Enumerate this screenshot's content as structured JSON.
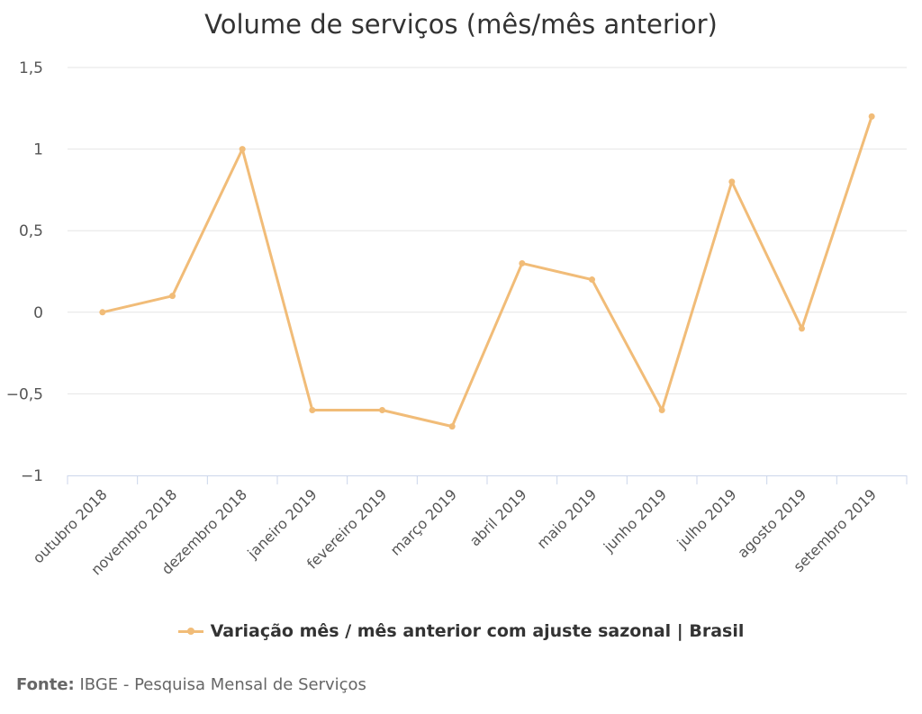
{
  "chart_data": {
    "type": "line",
    "title": "Volume de serviços (mês/mês anterior)",
    "categories": [
      "outubro 2018",
      "novembro 2018",
      "dezembro 2018",
      "janeiro 2019",
      "fevereiro 2019",
      "março 2019",
      "abril 2019",
      "maio 2019",
      "junho 2019",
      "julho 2019",
      "agosto 2019",
      "setembro 2019"
    ],
    "series": [
      {
        "name": "Variação mês / mês anterior com ajuste sazonal | Brasil",
        "values": [
          0,
          0.1,
          1.0,
          -0.6,
          -0.6,
          -0.7,
          0.3,
          0.2,
          -0.6,
          0.8,
          -0.1,
          1.2
        ],
        "color": "#f1bc78"
      }
    ],
    "ylim": [
      -1,
      1.5
    ],
    "y_ticks": [
      -1,
      -0.5,
      0,
      0.5,
      1,
      1.5
    ],
    "y_tick_labels": [
      "−1",
      "−0,5",
      "0",
      "0,5",
      "1",
      "1,5"
    ],
    "grid": true,
    "legend_position": "bottom"
  },
  "source": {
    "label": "Fonte:",
    "text": " IBGE - Pesquisa Mensal de Serviços"
  }
}
